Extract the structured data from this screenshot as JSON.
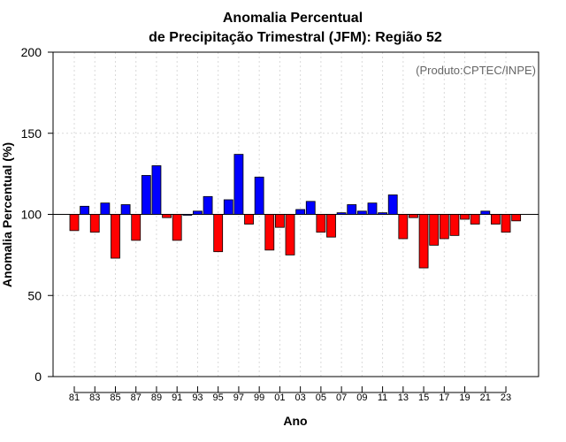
{
  "chart_data": {
    "type": "bar",
    "title_line1": "Anomalia Percentual",
    "title_line2": "de Precipitação Trimestral (JFM): Região 52",
    "xlabel": "Ano",
    "ylabel": "Anomalia Percentual (%)",
    "credit": "(Produto:CPTEC/INPE)",
    "baseline": 100,
    "ylim": [
      0,
      200
    ],
    "yticks": [
      0,
      50,
      100,
      150,
      200
    ],
    "xticks": [
      "81",
      "83",
      "85",
      "87",
      "89",
      "91",
      "93",
      "95",
      "97",
      "99",
      "01",
      "03",
      "05",
      "07",
      "09",
      "11",
      "13",
      "15",
      "17",
      "19",
      "21",
      "23"
    ],
    "years": [
      "81",
      "82",
      "83",
      "84",
      "85",
      "86",
      "87",
      "88",
      "89",
      "90",
      "91",
      "92",
      "93",
      "94",
      "95",
      "96",
      "97",
      "98",
      "99",
      "00",
      "01",
      "02",
      "03",
      "04",
      "05",
      "06",
      "07",
      "08",
      "09",
      "10",
      "11",
      "12",
      "13",
      "14",
      "15",
      "16",
      "17",
      "18",
      "19",
      "20",
      "21",
      "22",
      "23",
      "24"
    ],
    "values": [
      90,
      105,
      89,
      107,
      73,
      106,
      84,
      124,
      130,
      98,
      84,
      100,
      102,
      111,
      77,
      109,
      137,
      94,
      123,
      78,
      92,
      75,
      103,
      108,
      89,
      86,
      101,
      106,
      102,
      107,
      101,
      112,
      85,
      98,
      67,
      81,
      85,
      87,
      97,
      94,
      102,
      94,
      89,
      96
    ],
    "above_color": "#0000ff",
    "below_color": "#ff0000",
    "grid": true
  }
}
